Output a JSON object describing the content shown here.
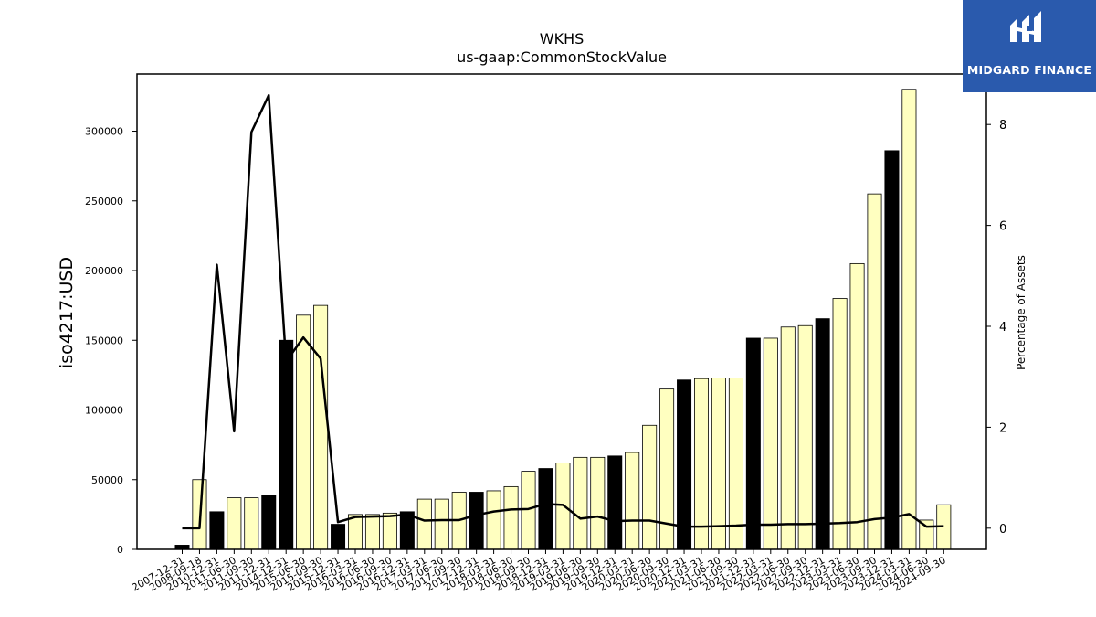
{
  "title": "WKHS",
  "subtitle": "us-gaap:CommonStockValue",
  "ylabel_left": "iso4217:USD",
  "ylabel_right": "Percentage of Assets",
  "logo": {
    "text": "MIDGARD FINANCE"
  },
  "colors": {
    "bar_normal": "#ffffc0",
    "bar_highlight": "#000000",
    "line": "#000000",
    "logo_bg": "#2a5aad"
  },
  "chart_data": {
    "type": "bar",
    "categories": [
      "2007-12-31",
      "2008-09-18",
      "2010-12-31",
      "2011-06-30",
      "2011-09-30",
      "2011-12-31",
      "2014-12-31",
      "2015-06-30",
      "2015-09-30",
      "2015-12-31",
      "2016-03-31",
      "2016-06-30",
      "2016-09-30",
      "2016-12-31",
      "2017-03-31",
      "2017-06-30",
      "2017-09-30",
      "2017-12-31",
      "2018-03-31",
      "2018-06-30",
      "2018-09-30",
      "2018-12-31",
      "2019-03-31",
      "2019-06-30",
      "2019-09-30",
      "2019-12-31",
      "2020-03-31",
      "2020-06-30",
      "2020-09-30",
      "2020-12-31",
      "2021-03-31",
      "2021-06-30",
      "2021-09-30",
      "2021-12-31",
      "2022-03-31",
      "2022-06-30",
      "2022-09-30",
      "2022-12-31",
      "2023-03-31",
      "2023-06-30",
      "2023-09-30",
      "2023-12-31",
      "2024-03-31",
      "2024-06-30",
      "2024-09-30"
    ],
    "series": [
      {
        "type": "bar",
        "values": [
          3000,
          50000,
          27000,
          37000,
          37000,
          38500,
          150000,
          168000,
          175000,
          18000,
          25000,
          25000,
          26000,
          27000,
          36000,
          36000,
          41000,
          41000,
          42000,
          45000,
          56000,
          58000,
          62000,
          66000,
          66000,
          67000,
          69500,
          89000,
          115000,
          121500,
          122500,
          123000,
          123000,
          151500,
          151500,
          159500,
          160500,
          165500,
          180000,
          205000,
          255000,
          286000,
          330000,
          21000,
          32000
        ],
        "highlight": [
          1,
          0,
          1,
          0,
          0,
          1,
          1,
          0,
          0,
          1,
          0,
          0,
          0,
          1,
          0,
          0,
          0,
          1,
          0,
          0,
          0,
          1,
          0,
          0,
          0,
          1,
          0,
          0,
          0,
          1,
          0,
          0,
          0,
          1,
          0,
          0,
          0,
          1,
          0,
          0,
          0,
          1,
          0,
          0,
          0
        ]
      },
      {
        "type": "line",
        "axis": "right",
        "values": [
          0.0,
          0.0,
          5.22,
          1.92,
          7.85,
          8.58,
          3.3,
          3.78,
          3.36,
          0.12,
          0.22,
          0.23,
          0.24,
          0.27,
          0.15,
          0.16,
          0.16,
          0.26,
          0.33,
          0.37,
          0.38,
          0.48,
          0.46,
          0.19,
          0.23,
          0.14,
          0.15,
          0.15,
          0.09,
          0.03,
          0.03,
          0.04,
          0.05,
          0.07,
          0.07,
          0.08,
          0.08,
          0.09,
          0.1,
          0.12,
          0.18,
          0.21,
          0.28,
          0.03,
          0.04
        ]
      }
    ],
    "ylim": [
      0,
      341000
    ],
    "y_ticks": [
      "0",
      "50000",
      "100000",
      "150000",
      "200000",
      "250000",
      "300000"
    ],
    "y2lim": [
      -0.42,
      9.0
    ],
    "y2_ticks": [
      "0",
      "2",
      "4",
      "6",
      "8"
    ],
    "grid": false
  }
}
